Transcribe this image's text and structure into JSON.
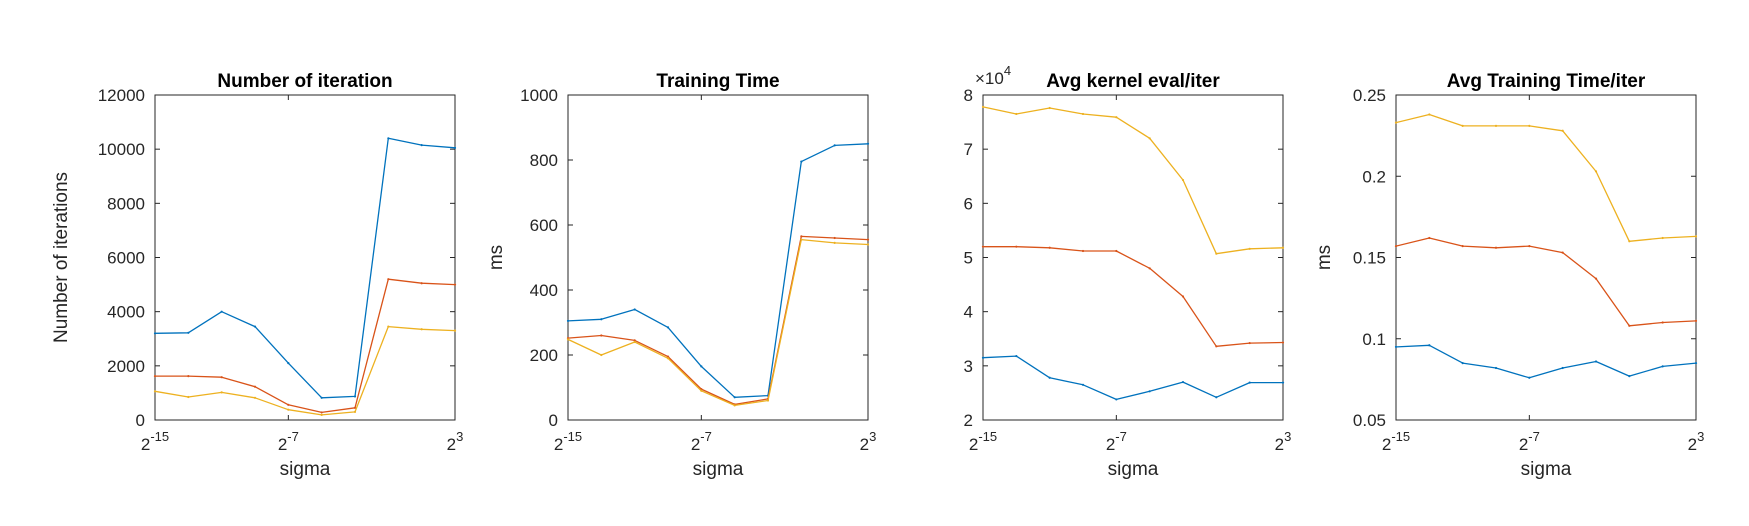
{
  "figure": {
    "background": "#ffffff",
    "series_colors": [
      "#0072BD",
      "#D95319",
      "#EDB120"
    ]
  },
  "chart_data": [
    {
      "type": "line",
      "title": "Number of iteration",
      "xlabel": "sigma",
      "ylabel": "Number of iterations",
      "exponent_label": "",
      "xlim": [
        -15,
        3
      ],
      "ylim": [
        0,
        12000
      ],
      "yticks": [
        0,
        2000,
        4000,
        6000,
        8000,
        10000,
        12000
      ],
      "ytick_labels": [
        "0",
        "2000",
        "4000",
        "6000",
        "8000",
        "10000",
        "12000"
      ],
      "xticks": [
        {
          "value": -15,
          "label": "2^-15"
        },
        {
          "value": -7,
          "label": "2^-7"
        },
        {
          "value": 3,
          "label": "2^3"
        }
      ],
      "grid": false,
      "x": [
        -15,
        -13,
        -11,
        -9,
        -7,
        -5,
        -3,
        -1,
        1,
        3
      ],
      "series": [
        {
          "values": [
            3200,
            3220,
            4000,
            3450,
            2100,
            820,
            870,
            10400,
            10150,
            10050
          ]
        },
        {
          "values": [
            1620,
            1620,
            1580,
            1230,
            560,
            280,
            450,
            5200,
            5050,
            5000
          ]
        },
        {
          "values": [
            1060,
            850,
            1020,
            820,
            380,
            190,
            300,
            3450,
            3350,
            3300
          ]
        }
      ]
    },
    {
      "type": "line",
      "title": "Training Time",
      "xlabel": "sigma",
      "ylabel": "ms",
      "exponent_label": "",
      "xlim": [
        -15,
        3
      ],
      "ylim": [
        0,
        1000
      ],
      "yticks": [
        0,
        200,
        400,
        600,
        800,
        1000
      ],
      "ytick_labels": [
        "0",
        "200",
        "400",
        "600",
        "800",
        "1000"
      ],
      "xticks": [
        {
          "value": -15,
          "label": "2^-15"
        },
        {
          "value": -7,
          "label": "2^-7"
        },
        {
          "value": 3,
          "label": "2^3"
        }
      ],
      "grid": false,
      "x": [
        -15,
        -13,
        -11,
        -9,
        -7,
        -5,
        -3,
        -1,
        1,
        3
      ],
      "series": [
        {
          "values": [
            305,
            310,
            340,
            285,
            165,
            70,
            75,
            795,
            845,
            850
          ]
        },
        {
          "values": [
            252,
            260,
            245,
            195,
            95,
            48,
            65,
            565,
            560,
            555
          ]
        },
        {
          "values": [
            248,
            200,
            240,
            190,
            90,
            45,
            60,
            555,
            545,
            540
          ]
        }
      ]
    },
    {
      "type": "line",
      "title": "Avg kernel eval/iter",
      "xlabel": "sigma",
      "ylabel": "",
      "exponent_label": "×10^4",
      "xlim": [
        -15,
        3
      ],
      "ylim": [
        2,
        8
      ],
      "yticks": [
        2,
        3,
        4,
        5,
        6,
        7,
        8
      ],
      "ytick_labels": [
        "2",
        "3",
        "4",
        "5",
        "6",
        "7",
        "8"
      ],
      "xticks": [
        {
          "value": -15,
          "label": "2^-15"
        },
        {
          "value": -7,
          "label": "2^-7"
        },
        {
          "value": 3,
          "label": "2^3"
        }
      ],
      "grid": false,
      "x": [
        -15,
        -13,
        -11,
        -9,
        -7,
        -5,
        -3,
        -1,
        1,
        3
      ],
      "series": [
        {
          "values": [
            3.15,
            3.18,
            2.78,
            2.65,
            2.38,
            2.53,
            2.7,
            2.42,
            2.69,
            2.69
          ]
        },
        {
          "values": [
            5.2,
            5.2,
            5.18,
            5.12,
            5.12,
            4.8,
            4.28,
            3.36,
            3.42,
            3.43
          ]
        },
        {
          "values": [
            7.78,
            7.65,
            7.76,
            7.65,
            7.59,
            7.2,
            6.43,
            5.07,
            5.16,
            5.18
          ]
        }
      ]
    },
    {
      "type": "line",
      "title": "Avg Training Time/iter",
      "xlabel": "sigma",
      "ylabel": "ms",
      "exponent_label": "",
      "xlim": [
        -15,
        3
      ],
      "ylim": [
        0.05,
        0.25
      ],
      "yticks": [
        0.05,
        0.1,
        0.15,
        0.2,
        0.25
      ],
      "ytick_labels": [
        "0.05",
        "0.1",
        "0.15",
        "0.2",
        "0.25"
      ],
      "xticks": [
        {
          "value": -15,
          "label": "2^-15"
        },
        {
          "value": -7,
          "label": "2^-7"
        },
        {
          "value": 3,
          "label": "2^3"
        }
      ],
      "grid": false,
      "x": [
        -15,
        -13,
        -11,
        -9,
        -7,
        -5,
        -3,
        -1,
        1,
        3
      ],
      "series": [
        {
          "values": [
            0.095,
            0.096,
            0.085,
            0.082,
            0.076,
            0.082,
            0.086,
            0.077,
            0.083,
            0.085
          ]
        },
        {
          "values": [
            0.157,
            0.162,
            0.157,
            0.156,
            0.157,
            0.153,
            0.137,
            0.108,
            0.11,
            0.111
          ]
        },
        {
          "values": [
            0.233,
            0.238,
            0.231,
            0.231,
            0.231,
            0.228,
            0.203,
            0.16,
            0.162,
            0.163
          ]
        }
      ]
    }
  ]
}
